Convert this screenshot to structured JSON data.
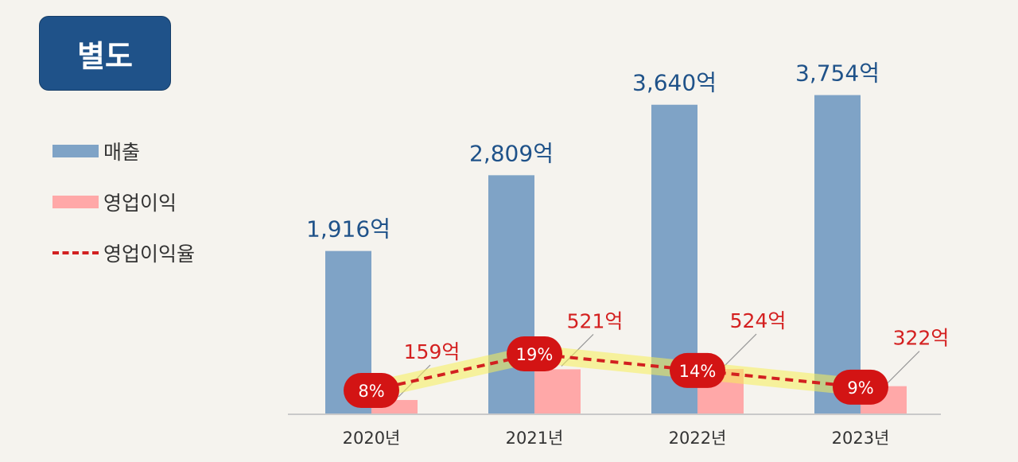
{
  "badge": "별도",
  "legend": {
    "revenue": "매출",
    "operating_profit": "영업이익",
    "operating_margin": "영업이익율"
  },
  "colors": {
    "badge": "#1f5289",
    "revenue_bar": "#7fa3c6",
    "profit_bar": "#ffa8a8",
    "revenue_label": "#1f5289",
    "profit_label": "#d42020",
    "margin_line": "#d22020",
    "margin_glow": "#f5ef5a"
  },
  "chart_data": {
    "type": "bar",
    "categories": [
      "2020년",
      "2021년",
      "2022년",
      "2023년"
    ],
    "series": [
      {
        "name": "매출",
        "values": [
          1916,
          2809,
          3640,
          3754
        ],
        "labels": [
          "1,916억",
          "2,809억",
          "3,640억",
          "3,754억"
        ]
      },
      {
        "name": "영업이익",
        "values": [
          159,
          521,
          524,
          322
        ],
        "labels": [
          "159억",
          "521억",
          "524억",
          "322억"
        ]
      },
      {
        "name": "영업이익율",
        "type": "line",
        "values": [
          8,
          19,
          14,
          9
        ],
        "labels": [
          "8%",
          "19%",
          "14%",
          "9%"
        ]
      }
    ],
    "ylim": [
      0,
      3900
    ],
    "grid": false,
    "legend_position": "left"
  }
}
